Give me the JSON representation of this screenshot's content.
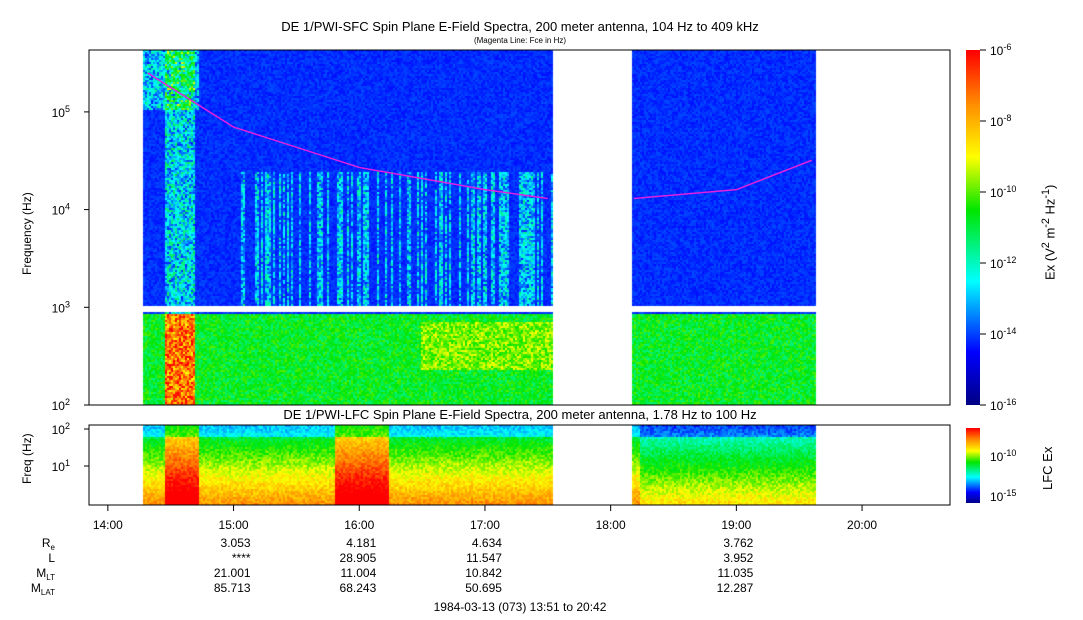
{
  "chart_data": [
    {
      "type": "heatmap",
      "title": "DE 1/PWI-SFC  Spin Plane E-Field Spectra, 200 meter antenna, 104 Hz to 409 kHz",
      "subtitle": "(Magenta Line: Fce in Hz)",
      "ylabel": "Frequency (Hz)",
      "yscale": "log",
      "ylim": [
        100,
        409000
      ],
      "yticks": [
        "10^2",
        "10^3",
        "10^4",
        "10^5"
      ],
      "colorbar": {
        "label": "Ex (V^2 m^-2 Hz^-1)",
        "range": [
          1e-16,
          1e-06
        ],
        "ticks": [
          "10^-6",
          "10^-8",
          "10^-10",
          "10^-12",
          "10^-14",
          "10^-16"
        ]
      },
      "data_intervals": [
        [
          "14:17",
          "17:32"
        ],
        [
          "18:10",
          "19:38"
        ]
      ],
      "fce_line": {
        "color": "#e020e0",
        "points": [
          [
            "14:19",
            250000
          ],
          [
            "15:00",
            70000
          ],
          [
            "16:00",
            27000
          ],
          [
            "17:00",
            16000
          ],
          [
            "17:30",
            13000
          ],
          [
            "18:11",
            13000
          ],
          [
            "19:00",
            16000
          ],
          [
            "19:36",
            32000
          ]
        ]
      }
    },
    {
      "type": "heatmap",
      "title": "DE 1/PWI-LFC  Spin Plane E-Field Spectra, 200 meter antenna, 1.78 Hz to 100 Hz",
      "ylabel": "Freq (Hz)",
      "yscale": "log",
      "ylim": [
        1.78,
        100
      ],
      "yticks": [
        "10^1",
        "10^2"
      ],
      "colorbar": {
        "label": "LFC Ex",
        "ticks": [
          "10^-10",
          "10^-15"
        ]
      }
    }
  ],
  "xaxis": {
    "ticks": [
      "14:00",
      "15:00",
      "16:00",
      "17:00",
      "18:00",
      "19:00",
      "20:00"
    ],
    "range": [
      "13:51",
      "20:42"
    ]
  },
  "ephemeris": {
    "rows": [
      {
        "label": "R",
        "sub": "e",
        "values": [
          "3.053",
          "4.181",
          "4.634",
          "",
          "3.762"
        ]
      },
      {
        "label": "L",
        "sub": "",
        "values": [
          "****",
          "28.905",
          "11.547",
          "",
          "3.952"
        ]
      },
      {
        "label": "M",
        "sub": "LT",
        "values": [
          "21.001",
          "11.004",
          "10.842",
          "",
          "11.035"
        ]
      },
      {
        "label": "M",
        "sub": "LAT",
        "values": [
          "85.713",
          "68.243",
          "50.695",
          "",
          "12.287"
        ]
      }
    ]
  },
  "footer": "1984-03-13 (073) 13:51 to 20:42"
}
